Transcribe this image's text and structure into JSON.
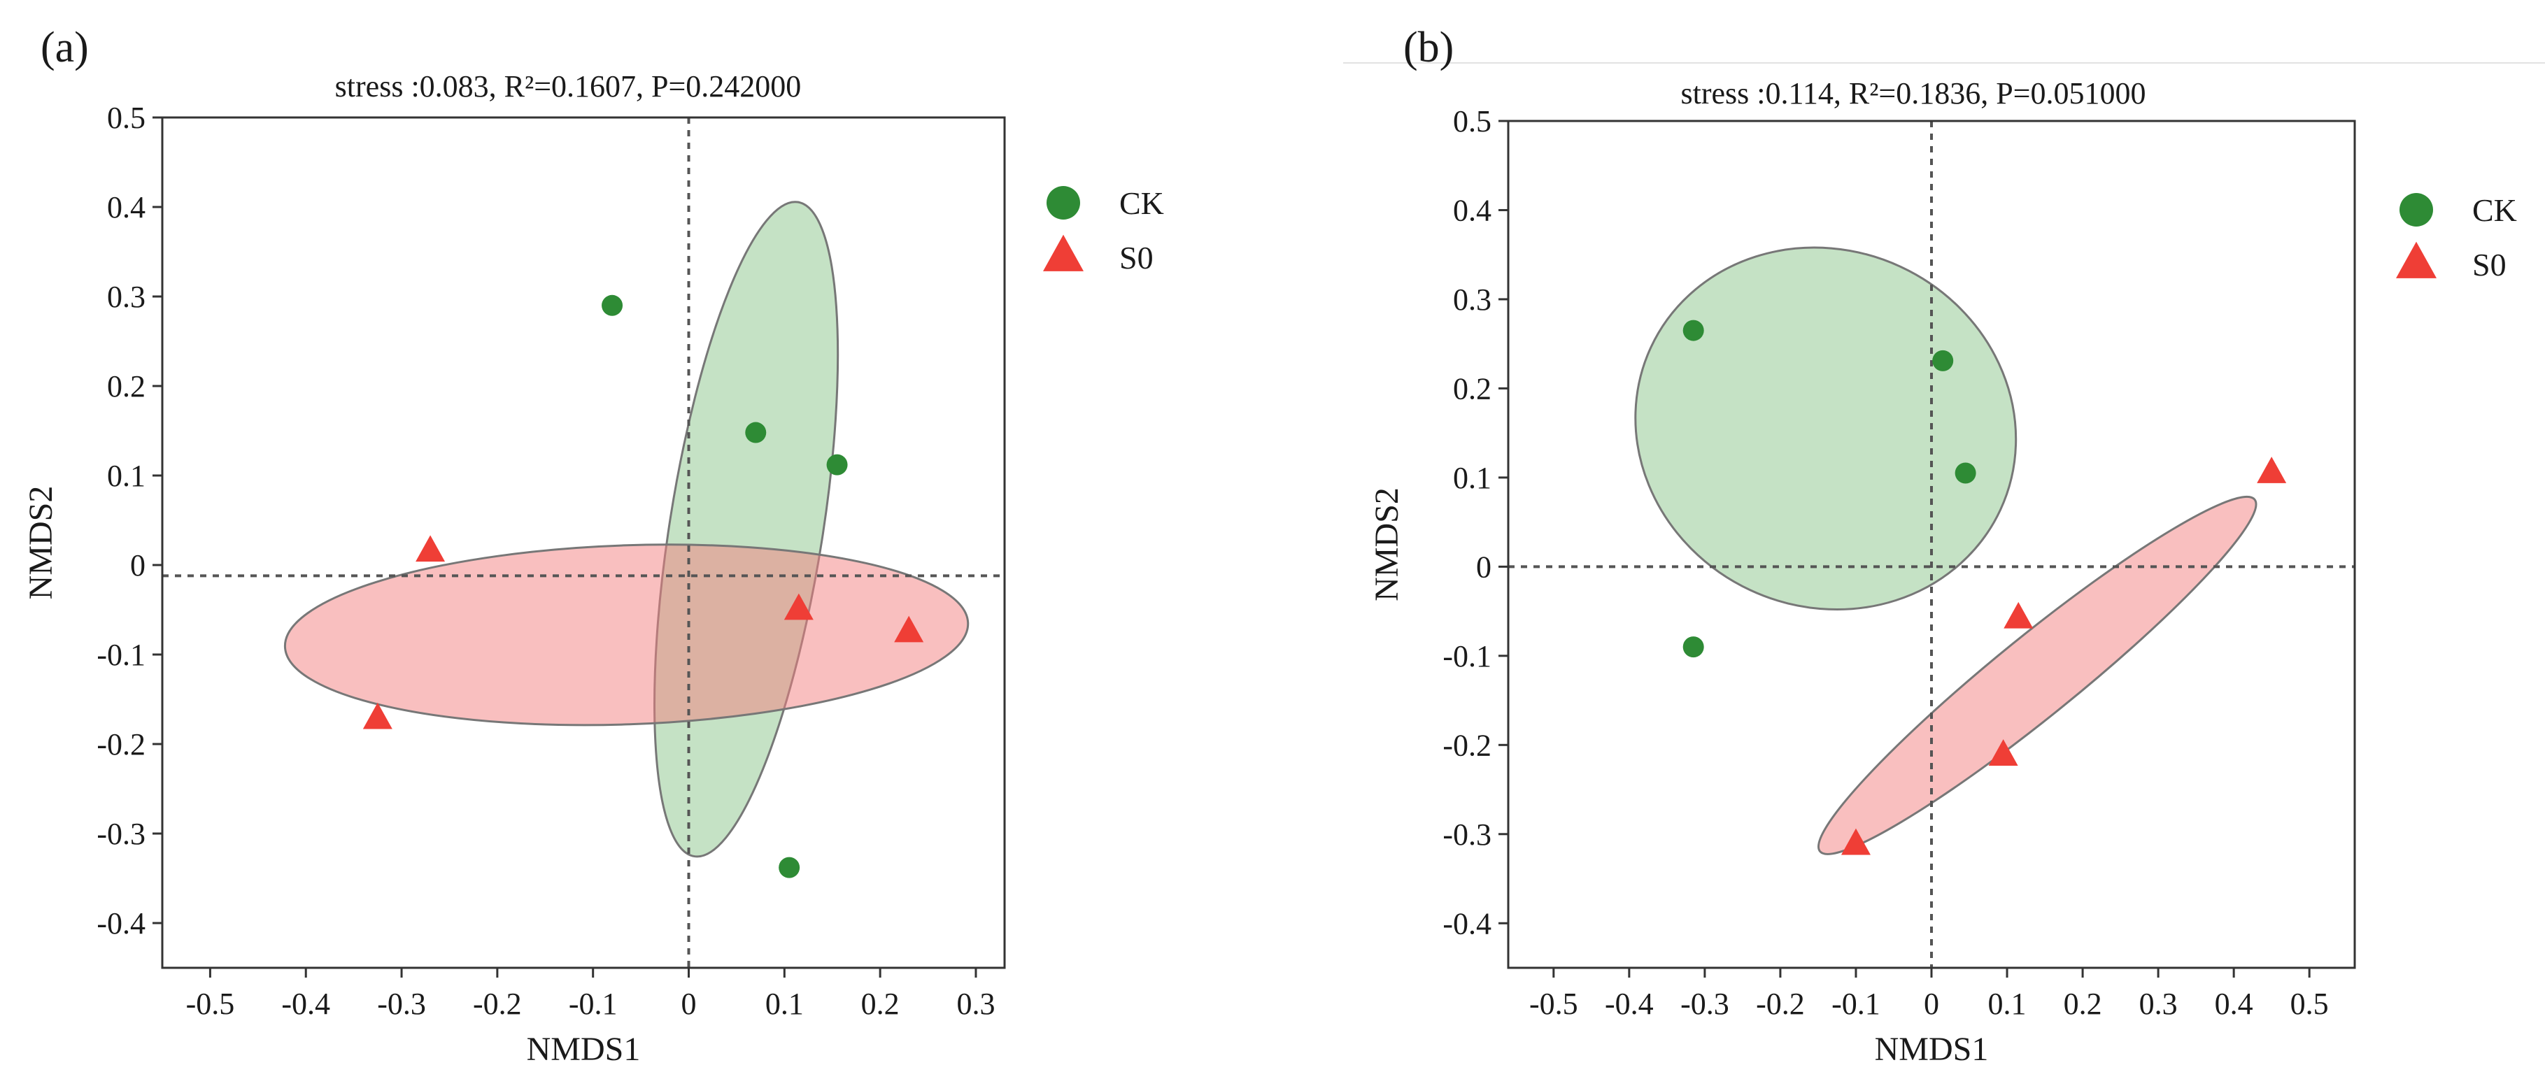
{
  "colors": {
    "ck": "#2e8b35",
    "s0": "#ef3e36",
    "ck_ellipse": "#8cc68c",
    "s0_ellipse": "#f47f7f"
  },
  "chart_data": [
    {
      "type": "scatter",
      "panel_label": "(a)",
      "title": "stress :0.083, R²=0.1607, P=0.242000",
      "xlabel": "NMDS1",
      "ylabel": "NMDS2",
      "xlim": [
        -0.55,
        0.33
      ],
      "ylim": [
        -0.45,
        0.5
      ],
      "x_ticks": [
        -0.5,
        -0.4,
        -0.3,
        -0.2,
        -0.1,
        0,
        0.1,
        0.2,
        0.3
      ],
      "x_tick_labels": [
        "-0.5",
        "-0.4",
        "-0.3",
        "-0.2",
        "-0.1",
        "0",
        "0.1",
        "0.2",
        "0.3"
      ],
      "y_ticks": [
        0.5,
        0.4,
        0.3,
        0.2,
        0.1,
        0,
        -0.1,
        -0.2,
        -0.3,
        -0.4
      ],
      "y_tick_labels": [
        "0.5",
        "0.4",
        "0.3",
        "0.2",
        "0.1",
        "0",
        "-0.1",
        "-0.2",
        "-0.3",
        "-0.4"
      ],
      "reference_lines": {
        "x": 0,
        "y": -0.012
      },
      "grid": false,
      "legend_position": "right",
      "legend": [
        "CK",
        "S0"
      ],
      "series": [
        {
          "name": "CK",
          "marker": "circle",
          "points": [
            [
              -0.08,
              0.29
            ],
            [
              0.07,
              0.148
            ],
            [
              0.155,
              0.112
            ],
            [
              0.105,
              -0.338
            ]
          ],
          "ellipse": {
            "center": [
              0.06,
              0.04
            ],
            "rx": 0.08,
            "ry": 0.37,
            "angle": -9
          }
        },
        {
          "name": "S0",
          "marker": "triangle",
          "points": [
            [
              -0.27,
              0.015
            ],
            [
              -0.325,
              -0.172
            ],
            [
              0.115,
              -0.05
            ],
            [
              0.23,
              -0.075
            ]
          ],
          "ellipse": {
            "center": [
              -0.065,
              -0.078
            ],
            "rx": 0.357,
            "ry": 0.1,
            "angle": 2
          }
        }
      ]
    },
    {
      "type": "scatter",
      "panel_label": "(b)",
      "title": "stress :0.114, R²=0.1836, P=0.051000",
      "xlabel": "NMDS1",
      "ylabel": "NMDS2",
      "xlim": [
        -0.56,
        0.56
      ],
      "ylim": [
        -0.45,
        0.5
      ],
      "x_ticks": [
        -0.5,
        -0.4,
        -0.3,
        -0.2,
        -0.1,
        0,
        0.1,
        0.2,
        0.3,
        0.4,
        0.5
      ],
      "x_tick_labels": [
        "-0.5",
        "-0.4",
        "-0.3",
        "-0.2",
        "-0.1",
        "0",
        "0.1",
        "0.2",
        "0.3",
        "0.4",
        "0.5"
      ],
      "y_ticks": [
        0.5,
        0.4,
        0.3,
        0.2,
        0.1,
        0,
        -0.1,
        -0.2,
        -0.3,
        -0.4
      ],
      "y_tick_labels": [
        "0.5",
        "0.4",
        "0.3",
        "0.2",
        "0.1",
        "0",
        "-0.1",
        "-0.2",
        "-0.3",
        "-0.4"
      ],
      "reference_lines": {
        "x": 0,
        "y": 0
      },
      "grid": false,
      "legend_position": "right",
      "legend": [
        "CK",
        "S0"
      ],
      "series": [
        {
          "name": "CK",
          "marker": "circle",
          "points": [
            [
              -0.315,
              0.265
            ],
            [
              0.015,
              0.231
            ],
            [
              0.045,
              0.105
            ],
            [
              -0.315,
              -0.09
            ]
          ],
          "ellipse": {
            "center": [
              -0.14,
              0.155
            ],
            "rx": 0.255,
            "ry": 0.2,
            "angle": -25
          }
        },
        {
          "name": "S0",
          "marker": "triangle",
          "points": [
            [
              0.45,
              0.105
            ],
            [
              0.115,
              -0.058
            ],
            [
              0.095,
              -0.212
            ],
            [
              -0.1,
              -0.312
            ]
          ],
          "ellipse": {
            "center": [
              0.14,
              -0.122
            ],
            "rx": 0.37,
            "ry": 0.045,
            "angle": 39
          }
        }
      ]
    }
  ]
}
